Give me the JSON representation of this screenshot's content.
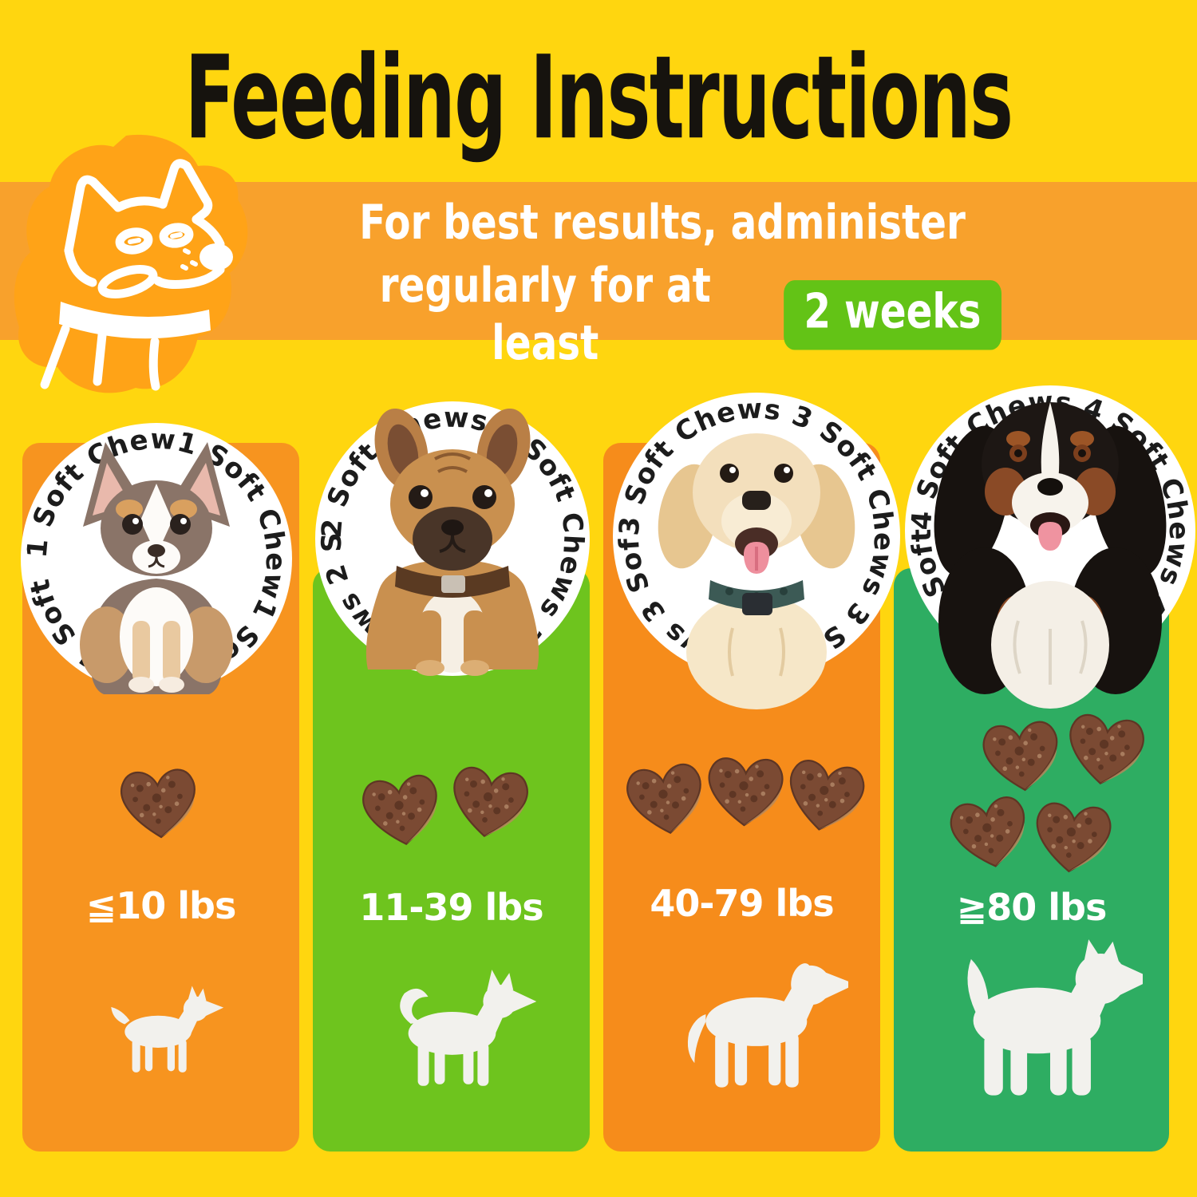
{
  "page": {
    "title": "Feeding Instructions"
  },
  "banner": {
    "line1": "For best results, administer",
    "line2": "regularly for at least",
    "badge": "2 weeks",
    "badge_color": "#63C316",
    "band_color": "#F8A12C"
  },
  "background_color": "#FFD60F",
  "columns": [
    {
      "size": "small",
      "ring": "1 Soft Chew1 Soft Chew1 Soft Chew1 Soft Chew1 Soft Chew1 Soft Chew",
      "circle_label": "1 Soft Chew",
      "dose_chews": 1,
      "weight": "≦10 lbs",
      "color": "#F7941F",
      "photo": "chihuahua-puppy-photo"
    },
    {
      "size": "medium",
      "ring": "2 Soft Chews 2 Soft Chews 2 Soft Chews 2 Soft Chews 2 Soft Chews",
      "circle_label": "2 Soft Chews",
      "dose_chews": 2,
      "weight": "11-39 lbs",
      "color": "#6EC41E",
      "photo": "french-bulldog-photo"
    },
    {
      "size": "large",
      "ring": "3 Soft Chews 3 Soft Chews 3 Soft Chews 3 Soft Chews 3 Soft Chews",
      "circle_label": "3 Soft Chews",
      "dose_chews": 3,
      "weight": "40-79 lbs",
      "color": "#F68C1B",
      "photo": "golden-retriever-puppy-photo"
    },
    {
      "size": "xlarge",
      "ring": "4 Soft Chews 4 Soft Chews 4 Soft Chews 4 Soft Chews 4 Soft Chews",
      "circle_label": "4 Soft Chews",
      "dose_chews": 4,
      "weight": "≧80 lbs",
      "color": "#2EAD62",
      "photo": "bernese-mountain-dog-photo"
    }
  ],
  "chew_color": "#7B4A33"
}
